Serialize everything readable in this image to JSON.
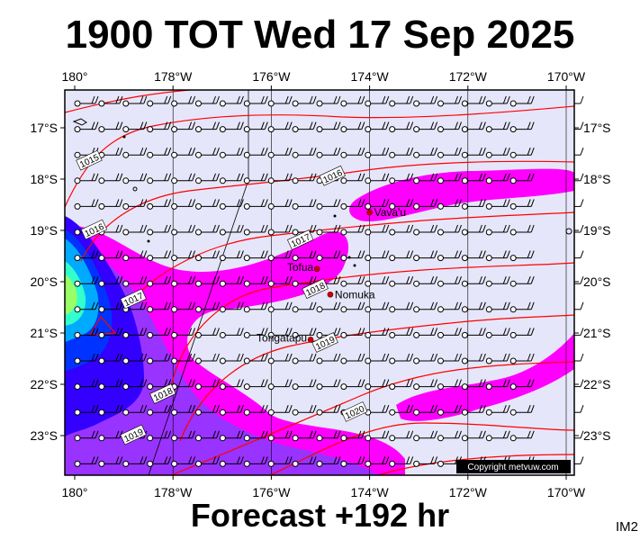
{
  "header": {
    "title": "1900 TOT Wed 17 Sep 2025"
  },
  "footer": {
    "forecast": "Forecast +192 hr",
    "map_id": "IM2"
  },
  "copyright": "Copyright metvuw.com",
  "axes": {
    "lon_labels": [
      "180°",
      "178°W",
      "176°W",
      "174°W",
      "172°W",
      "170°W"
    ],
    "lon_values": [
      180,
      178,
      176,
      174,
      172,
      170
    ],
    "lat_labels": [
      "17°S",
      "18°S",
      "19°S",
      "20°S",
      "21°S",
      "22°S",
      "23°S"
    ],
    "lat_values": [
      17,
      18,
      19,
      20,
      21,
      22,
      23
    ]
  },
  "places": [
    {
      "name": "Vava'u",
      "lon": 174.0,
      "lat": 18.65
    },
    {
      "name": "Tofua",
      "lon": 175.07,
      "lat": 19.75
    },
    {
      "name": "Nomuka",
      "lon": 174.8,
      "lat": 20.25
    },
    {
      "name": "Tongatapu",
      "lon": 175.2,
      "lat": 21.13
    }
  ],
  "isobars": [
    {
      "label": "1015",
      "lon": 179.7,
      "lat": 17.65
    },
    {
      "label": "1016",
      "lon": 179.6,
      "lat": 19.0
    },
    {
      "label": "1017",
      "lon": 178.8,
      "lat": 20.35
    },
    {
      "label": "1018",
      "lon": 178.2,
      "lat": 22.2
    },
    {
      "label": "1019",
      "lon": 178.8,
      "lat": 23.0
    },
    {
      "label": "1016",
      "lon": 174.75,
      "lat": 17.95
    },
    {
      "label": "1017",
      "lon": 175.4,
      "lat": 19.2
    },
    {
      "label": "1018",
      "lon": 175.1,
      "lat": 20.15
    },
    {
      "label": "1019",
      "lon": 174.9,
      "lat": 21.2
    },
    {
      "label": "1020",
      "lon": 174.3,
      "lat": 22.55
    }
  ],
  "colors": {
    "background": "#e6e6fa",
    "isobar": "#ff0000",
    "rain_light": "#ff00ff",
    "rain_mid": "#9900ff",
    "rain_heavy": "#0000ff",
    "rain_peak": "#00ffff"
  }
}
